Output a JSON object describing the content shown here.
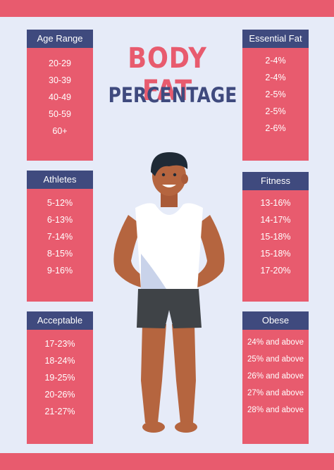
{
  "title": {
    "line1": "BODY FAT",
    "line2": "PERCENTAGE"
  },
  "colors": {
    "accent": "#e85b6e",
    "header": "#3f4a7e",
    "background": "#e6ebf8"
  },
  "cards": {
    "age": {
      "label": "Age Range",
      "values": [
        "20-29",
        "30-39",
        "40-49",
        "50-59",
        "60+"
      ]
    },
    "essential": {
      "label": "Essential Fat",
      "values": [
        "2-4%",
        "2-4%",
        "2-5%",
        "2-5%",
        "2-6%"
      ]
    },
    "athletes": {
      "label": "Athletes",
      "values": [
        "5-12%",
        "6-13%",
        "7-14%",
        "8-15%",
        "9-16%"
      ]
    },
    "fitness": {
      "label": "Fitness",
      "values": [
        "13-16%",
        "14-17%",
        "15-18%",
        "15-18%",
        "17-20%"
      ]
    },
    "acceptable": {
      "label": "Acceptable",
      "values": [
        "17-23%",
        "18-24%",
        "19-25%",
        "20-26%",
        "21-27%"
      ]
    },
    "obese": {
      "label": "Obese",
      "values": [
        "24% and above",
        "25% and above",
        "26% and above",
        "27% and above",
        "28% and above"
      ]
    }
  }
}
